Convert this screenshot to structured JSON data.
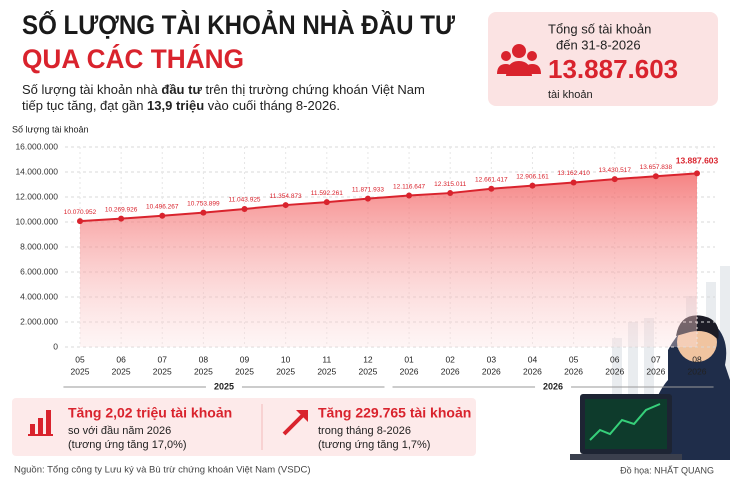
{
  "title": [
    "SỐ LƯỢNG TÀI KHOẢN NHÀ ĐẦU TƯ",
    "QUA CÁC THÁNG"
  ],
  "subtitle": [
    [
      "Số lượng tài khoản nhà ",
      "đầu tư",
      " trên thị trường chứng khoán Việt Nam"
    ],
    [
      "tiếp tục tăng, đạt gần ",
      "13,9 triệu",
      " vào cuối tháng 8-2026."
    ]
  ],
  "summary": {
    "label": "Tổng số tài khoản",
    "date": "đến 31-8-2026",
    "value": "13.887.603",
    "unit": "tài khoản"
  },
  "chart_data": {
    "type": "line",
    "ylabel": "Số lượng tài khoản",
    "categories": [
      "05",
      "06",
      "07",
      "08",
      "09",
      "10",
      "11",
      "12",
      "01",
      "02",
      "03",
      "04",
      "05",
      "06",
      "07",
      "08"
    ],
    "category_years": [
      "2025",
      "2025",
      "2025",
      "2025",
      "2025",
      "2025",
      "2025",
      "2025",
      "2026",
      "2026",
      "2026",
      "2026",
      "2026",
      "2026",
      "2026",
      "2026"
    ],
    "groups": [
      {
        "label": "2025",
        "from": 0,
        "to": 7
      },
      {
        "label": "2026",
        "from": 8,
        "to": 15
      }
    ],
    "color": "#d9232d",
    "values": [
      10070952,
      10269926,
      10496267,
      10753899,
      11043925,
      11354873,
      11592261,
      11871933,
      12116647,
      12315011,
      12661417,
      12906161,
      13162410,
      13430517,
      13657838,
      13887603
    ],
    "value_labels": [
      "10.070.952",
      "10.269.926",
      "10.496.267",
      "10.753.899",
      "11.043.925",
      "11.354.873",
      "11.592.261",
      "11.871.933",
      "12.116.647",
      "12.315.011",
      "12.661.417",
      "12.906.161",
      "13.162.410",
      "13.430.517",
      "13.657.838",
      "13.887.603"
    ],
    "ylim": [
      0,
      16000000
    ],
    "yticks": [
      0,
      {
        "value": 2000000,
        "label": "2.000.000"
      },
      {
        "value": 4000000,
        "label": "4.000.000"
      },
      {
        "value": 6000000,
        "label": "6.000.000"
      },
      {
        "value": 8000000,
        "label": "8.000.000"
      },
      {
        "value": 10000000,
        "label": "10.000.000"
      },
      {
        "value": 12000000,
        "label": "12.000.000"
      },
      {
        "value": 14000000,
        "label": "14.000.000"
      },
      {
        "value": 16000000,
        "label": "16.000.000"
      }
    ],
    "grid": true
  },
  "highlights": [
    {
      "title": "Tăng 2,02 triệu tài khoản",
      "line1": "so với đầu năm 2026",
      "line2": "(tương ứng tăng 17,0%)"
    },
    {
      "title": "Tăng 229.765 tài khoản",
      "line1": "trong tháng 8-2026",
      "line2": "(tương ứng tăng 1,7%)"
    }
  ],
  "source": "Nguồn: Tổng công ty Lưu ký và Bù trừ chứng khoán Việt Nam (VSDC)",
  "credit": "Đồ họa: NHẤT QUANG"
}
